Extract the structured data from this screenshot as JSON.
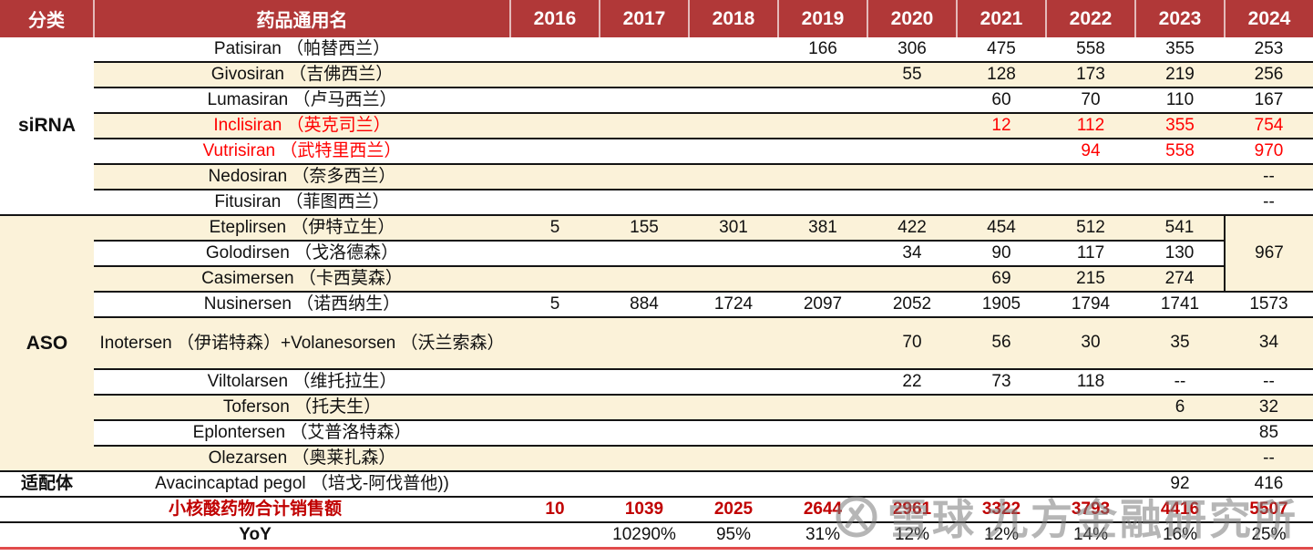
{
  "colors": {
    "header_bg": "#B13838",
    "row_alt_bg": "#FBF2D9",
    "highlight_red": "#FF0000",
    "total_red": "#C00000",
    "line_black": "#141414",
    "bottom_line_red": "#E14B4B"
  },
  "chart_data": {
    "type": "table",
    "columns": [
      "分类",
      "药品通用名",
      "2016",
      "2017",
      "2018",
      "2019",
      "2020",
      "2021",
      "2022",
      "2023",
      "2024"
    ],
    "sections": [
      {
        "category": "siRNA",
        "rows": [
          {
            "name": "Patisiran （帕替西兰）",
            "values": [
              "",
              "",
              "",
              "166",
              "306",
              "475",
              "558",
              "355",
              "253"
            ]
          },
          {
            "name": "Givosiran （吉佛西兰）",
            "values": [
              "",
              "",
              "",
              "",
              "55",
              "128",
              "173",
              "219",
              "256"
            ]
          },
          {
            "name": "Lumasiran （卢马西兰）",
            "values": [
              "",
              "",
              "",
              "",
              "",
              "60",
              "70",
              "110",
              "167"
            ]
          },
          {
            "name": "Inclisiran （英克司兰）",
            "color": "red",
            "values": [
              "",
              "",
              "",
              "",
              "",
              "12",
              "112",
              "355",
              "754"
            ]
          },
          {
            "name": "Vutrisiran （武特里西兰）",
            "color": "red",
            "values": [
              "",
              "",
              "",
              "",
              "",
              "",
              "94",
              "558",
              "970"
            ]
          },
          {
            "name": "Nedosiran （奈多西兰）",
            "values": [
              "",
              "",
              "",
              "",
              "",
              "",
              "",
              "",
              "--"
            ]
          },
          {
            "name": "Fitusiran （菲图西兰）",
            "values": [
              "",
              "",
              "",
              "",
              "",
              "",
              "",
              "",
              "--"
            ]
          }
        ]
      },
      {
        "category": "ASO",
        "rows": [
          {
            "name": "Eteplirsen （伊特立生）",
            "values": [
              "5",
              "155",
              "301",
              "381",
              "422",
              "454",
              "512",
              "541"
            ],
            "value_2024_merged": "967"
          },
          {
            "name": "Golodirsen （戈洛德森）",
            "values": [
              "",
              "",
              "",
              "",
              "34",
              "90",
              "117",
              "130"
            ]
          },
          {
            "name": "Casimersen （卡西莫森）",
            "values": [
              "",
              "",
              "",
              "",
              "",
              "69",
              "215",
              "274"
            ]
          },
          {
            "name": "Nusinersen （诺西纳生）",
            "values": [
              "5",
              "884",
              "1724",
              "2097",
              "2052",
              "1905",
              "1794",
              "1741",
              "1573"
            ]
          },
          {
            "name": "Inotersen （伊诺特森）+Volanesorsen （沃兰索森）",
            "values": [
              "",
              "",
              "",
              "",
              "70",
              "56",
              "30",
              "35",
              "34"
            ]
          },
          {
            "name": "Viltolarsen （维托拉生）",
            "values": [
              "",
              "",
              "",
              "",
              "22",
              "73",
              "118",
              "--",
              "--"
            ]
          },
          {
            "name": "Toferson （托夫生）",
            "values": [
              "",
              "",
              "",
              "",
              "",
              "",
              "",
              "6",
              "32"
            ]
          },
          {
            "name": "Eplontersen （艾普洛特森）",
            "values": [
              "",
              "",
              "",
              "",
              "",
              "",
              "",
              "",
              "85"
            ]
          },
          {
            "name": "Olezarsen （奥莱扎森）",
            "values": [
              "",
              "",
              "",
              "",
              "",
              "",
              "",
              "",
              "--"
            ]
          }
        ]
      },
      {
        "category": "适配体",
        "rows": [
          {
            "name": "Avacincaptad pegol （培戈-阿伐普他))",
            "values": [
              "",
              "",
              "",
              "",
              "",
              "",
              "",
              "92",
              "416"
            ]
          }
        ]
      }
    ],
    "summary_rows": [
      {
        "label": "小核酸药物合计销售额",
        "values": [
          "10",
          "1039",
          "2025",
          "2644",
          "2961",
          "3322",
          "3793",
          "4416",
          "5507"
        ]
      },
      {
        "label": "YoY",
        "values": [
          "",
          "10290%",
          "95%",
          "31%",
          "12%",
          "12%",
          "14%",
          "16%",
          "25%"
        ]
      }
    ]
  },
  "watermark": {
    "brand": "雪球",
    "org": "九方金融研究所"
  }
}
